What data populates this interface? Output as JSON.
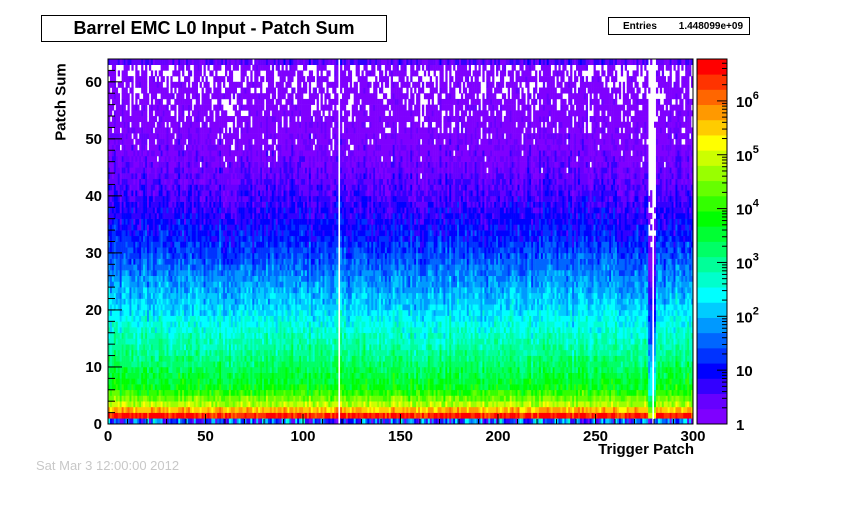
{
  "chart_data": {
    "type": "heatmap",
    "title": "Barrel EMC L0 Input - Patch Sum",
    "xlabel": "Trigger Patch",
    "ylabel": "Patch Sum",
    "xlim": [
      0,
      300
    ],
    "ylim": [
      0,
      64
    ],
    "x_ticks": [
      0,
      50,
      100,
      150,
      200,
      250,
      300
    ],
    "y_ticks": [
      0,
      10,
      20,
      30,
      40,
      50,
      60
    ],
    "stats": {
      "label": "Entries",
      "value": "1.448099e+09"
    },
    "colorbar": {
      "scale": "log",
      "range": [
        1,
        6000000
      ],
      "ticks": [
        {
          "value": 1,
          "base": "1",
          "exp": ""
        },
        {
          "value": 10,
          "base": "10",
          "exp": ""
        },
        {
          "value": 100,
          "base": "10",
          "exp": "2"
        },
        {
          "value": 1000,
          "base": "10",
          "exp": "3"
        },
        {
          "value": 10000,
          "base": "10",
          "exp": "4"
        },
        {
          "value": 100000,
          "base": "10",
          "exp": "5"
        },
        {
          "value": 1000000,
          "base": "10",
          "exp": "6"
        }
      ],
      "palette": [
        "#7f00ff",
        "#6600ff",
        "#3300ff",
        "#0000ff",
        "#0033ff",
        "#0066ff",
        "#0099ff",
        "#00ccff",
        "#00ffff",
        "#00ffcc",
        "#00ff99",
        "#00ff66",
        "#00ff33",
        "#00ff00",
        "#33ff00",
        "#66ff00",
        "#99ff00",
        "#ccff00",
        "#ffff00",
        "#ffcc00",
        "#ff9900",
        "#ff6600",
        "#ff3300",
        "#ff0000"
      ]
    },
    "distribution": {
      "peak_bin_content": 3000000,
      "rows": [
        {
          "sum": 0,
          "content": 40
        },
        {
          "sum": 1,
          "content": 3000000
        },
        {
          "sum": 2,
          "content": 400000
        },
        {
          "sum": 3,
          "content": 60000
        },
        {
          "sum": 4,
          "content": 25000
        },
        {
          "sum": 6,
          "content": 5000
        },
        {
          "sum": 8,
          "content": 3000
        },
        {
          "sum": 12,
          "content": 1000
        },
        {
          "sum": 16,
          "content": 400
        },
        {
          "sum": 20,
          "content": 150
        },
        {
          "sum": 25,
          "content": 60
        },
        {
          "sum": 30,
          "content": 20
        },
        {
          "sum": 35,
          "content": 8
        },
        {
          "sum": 40,
          "content": 4
        },
        {
          "sum": 45,
          "content": 2
        },
        {
          "sum": 50,
          "content": 1.2
        },
        {
          "sum": 55,
          "content": 0.8
        },
        {
          "sum": 62,
          "content": 0.5
        },
        {
          "sum": 63,
          "content": 3
        }
      ],
      "empty_patches": [
        118,
        279
      ],
      "sparse_patches": [
        277,
        278,
        280
      ]
    },
    "footer": "Sat Mar  3 12:00:00 2012"
  }
}
